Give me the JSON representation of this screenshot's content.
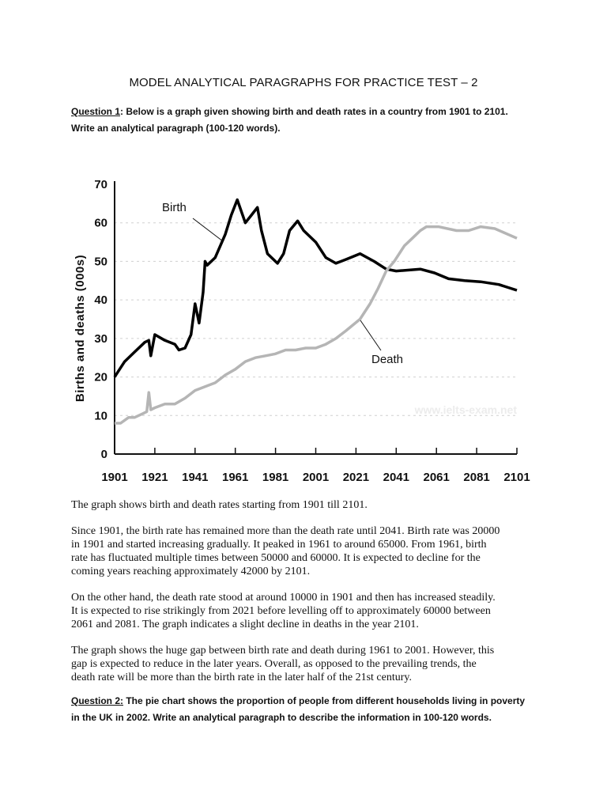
{
  "document": {
    "title": "MODEL ANALYTICAL PARAGRAPHS FOR PRACTICE TEST – 2",
    "question1": {
      "label": "Question 1",
      "text_lines": [
        ": Below is a graph given showing birth and death rates in a country from 1901 to 2101.",
        "Write an analytical paragraph (100-120 words)."
      ]
    },
    "paragraphs": [
      [
        "The graph shows birth and death rates  starting from 1901 till 2101."
      ],
      [
        "Since 1901, the birth rate has remained more than the death rate until 2041. Birth rate was 20000",
        "in 1901 and started increasing gradually. It peaked in 1961 to around 65000. From 1961, birth",
        "rate has fluctuated multiple times between 50000 and 60000. It is expected to decline for the",
        "coming years reaching approximately 42000 by 2101."
      ],
      [
        "On the other hand, the death rate stood at around 10000 in 1901 and then has increased steadily.",
        "It is expected to rise strikingly from 2021 before levelling off to approximately 60000 between",
        "2061 and 2081. The graph indicates a slight decline in deaths in the year 2101."
      ],
      [
        "The graph shows the huge gap between birth rate and death during 1961 to 2001. However, this",
        "gap is expected to reduce in the later years. Overall, as opposed to the prevailing trends, the",
        "death rate will be more than the birth rate in the later half of the 21st century."
      ]
    ],
    "question2": {
      "label": "Question 2:",
      "text_lines": [
        " The pie chart shows the proportion of people from different households living in poverty",
        "in the UK in 2002. Write an analytical paragraph to describe the information in 100-120 words."
      ]
    }
  },
  "chart_data": {
    "type": "line",
    "title": "",
    "xlabel": "",
    "ylabel": "Births and deaths (000s)",
    "xlim": [
      1901,
      2101
    ],
    "ylim": [
      0,
      70
    ],
    "x_ticks": [
      "1901",
      "1921",
      "1941",
      "1961",
      "1981",
      "2001",
      "2021",
      "2041",
      "2061",
      "2081",
      "2101"
    ],
    "y_ticks": [
      "0",
      "10",
      "20",
      "30",
      "40",
      "50",
      "60",
      "70"
    ],
    "grid": "horizontal dotted",
    "watermark": "www.ielts-exam.net",
    "series": [
      {
        "name": "Birth",
        "color": "#000000",
        "x": [
          1901,
          1906,
          1911,
          1916,
          1918,
          1919,
          1921,
          1926,
          1931,
          1933,
          1936,
          1939,
          1941,
          1943,
          1945,
          1946,
          1947,
          1951,
          1956,
          1959,
          1962,
          1966,
          1969,
          1972,
          1974,
          1977,
          1982,
          1985,
          1988,
          1992,
          1995,
          2001,
          2006,
          2011,
          2016,
          2023,
          2030,
          2036,
          2041,
          2053,
          2060,
          2067,
          2075,
          2083,
          2092,
          2101
        ],
        "y": [
          20,
          24,
          26.5,
          29,
          29.5,
          25.5,
          31,
          29.5,
          28.5,
          27,
          27.5,
          31,
          39,
          34,
          42,
          50,
          49,
          51,
          57,
          62,
          66,
          60,
          62,
          64,
          58,
          52,
          49.5,
          52,
          58,
          60.5,
          58,
          55,
          51,
          49.5,
          50.5,
          52,
          50,
          48,
          47.5,
          48,
          47,
          45.5,
          45,
          44.7,
          44,
          42.5
        ]
      },
      {
        "name": "Death",
        "color": "#b5b5b5",
        "x": [
          1901,
          1904,
          1908,
          1911,
          1915,
          1917,
          1918,
          1919,
          1921,
          1926,
          1931,
          1936,
          1941,
          1946,
          1951,
          1956,
          1961,
          1966,
          1971,
          1976,
          1981,
          1986,
          1991,
          1996,
          2001,
          2006,
          2011,
          2016,
          2023,
          2028,
          2032,
          2036,
          2040,
          2045,
          2049,
          2053,
          2056,
          2062,
          2071,
          2077,
          2083,
          2090,
          2101
        ],
        "y": [
          8,
          8,
          9.5,
          9.5,
          10.5,
          11,
          16,
          11.5,
          12,
          13,
          13,
          14.5,
          16.5,
          17.5,
          18.5,
          20.5,
          22,
          24,
          25,
          25.5,
          26,
          27,
          27,
          27.5,
          27.5,
          28.5,
          30,
          32,
          35,
          39,
          43,
          47.5,
          50,
          54,
          56,
          58,
          59,
          59,
          58,
          58,
          59,
          58.5,
          56
        ]
      }
    ]
  }
}
